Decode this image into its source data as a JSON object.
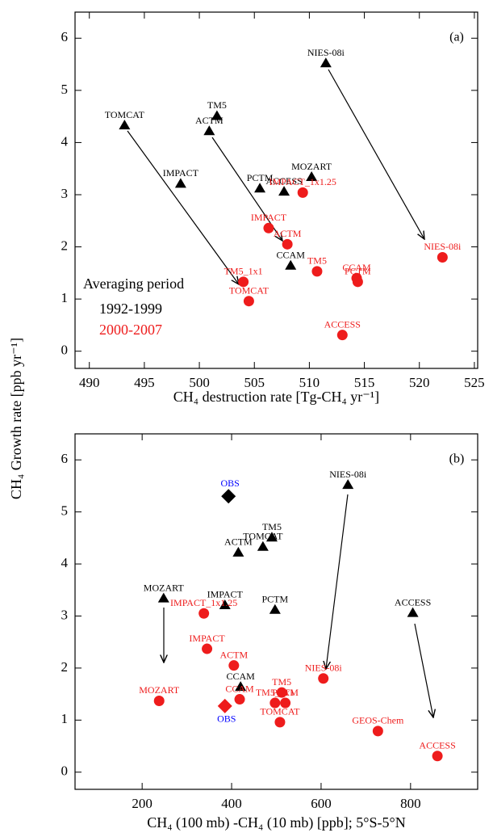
{
  "chart_data": [
    {
      "type": "scatter",
      "panel_label": "(a)",
      "y_label": "CH₄ Growth rate [ppb yr⁻¹]",
      "x_label": "CH₄ destruction rate [Tg-CH₄ yr⁻¹]",
      "legend": true,
      "legend_title": "Averaging period",
      "xlim": [
        488.7,
        525.3
      ],
      "xticks": [
        490,
        495,
        500,
        505,
        510,
        515,
        520,
        525
      ],
      "ylim": [
        -0.33,
        6.5
      ],
      "yticks": [
        0,
        1,
        2,
        3,
        4,
        5,
        6
      ],
      "series": [
        {
          "name": "1992-1999",
          "color": "#000000",
          "marker": "triangle",
          "labels": [
            "NIES-08i",
            "TM5",
            "ACTM",
            "TOMCAT",
            "IMPACT",
            "PCTM",
            "ACCESS",
            "MOZART",
            "CCAM"
          ],
          "x": [
            511.5,
            501.6,
            500.9,
            493.2,
            498.3,
            505.5,
            507.7,
            510.2,
            508.3
          ],
          "y": [
            5.52,
            4.51,
            4.22,
            4.33,
            3.21,
            3.12,
            3.06,
            3.34,
            1.64
          ]
        },
        {
          "name": "2000-2007",
          "color": "#ee1c1c",
          "marker": "circle",
          "labels": [
            "IMPACT_1x1.25",
            "IMPACT",
            "ACTM",
            "NIES-08i",
            "TM5",
            "TM5_1x1",
            "TOMCAT",
            "CCAM",
            "PCTM",
            "ACCESS"
          ],
          "x": [
            509.4,
            506.3,
            508.0,
            522.1,
            510.7,
            504.0,
            504.5,
            514.3,
            514.4,
            513.0
          ],
          "y": [
            3.04,
            2.36,
            2.05,
            1.8,
            1.53,
            1.33,
            0.96,
            1.4,
            1.33,
            0.31
          ]
        }
      ]
    },
    {
      "type": "scatter",
      "panel_label": "(b)",
      "x_label": "CH₄ (100 mb) -CH₄ (10 mb) [ppb]; 5°S-5°N",
      "legend": false,
      "xlim": [
        50,
        950
      ],
      "xticks": [
        200,
        400,
        600,
        800
      ],
      "ylim": [
        -0.33,
        6.5
      ],
      "yticks": [
        0,
        1,
        2,
        3,
        4,
        5,
        6
      ],
      "series": [
        {
          "color": "#000000",
          "marker": "triangle",
          "labels": [
            "NIES-08i",
            "TM5",
            "TOMCAT",
            "ACTM",
            "MOZART",
            "IMPACT",
            "PCTM",
            "ACCESS",
            "CCAM"
          ],
          "x": [
            660,
            490,
            470,
            415,
            248,
            385,
            497,
            805,
            420
          ],
          "y": [
            5.52,
            4.51,
            4.33,
            4.22,
            3.34,
            3.21,
            3.12,
            3.06,
            1.64
          ],
          "obs": {
            "label": "OBS",
            "x": 393,
            "y": 5.3,
            "label_color": "#0000ff"
          }
        },
        {
          "color": "#ee1c1c",
          "marker": "circle",
          "labels": [
            "IMPACT_1x1.25",
            "IMPACT",
            "ACTM",
            "NIES-08i",
            "MOZART",
            "CCAM",
            "TM5",
            "TM5_1x1",
            "PCTM",
            "TOMCAT",
            "GEOS-Chem",
            "ACCESS"
          ],
          "x": [
            338,
            345,
            405,
            605,
            238,
            418,
            512,
            497,
            520,
            508,
            727,
            860
          ],
          "y": [
            3.05,
            2.37,
            2.05,
            1.8,
            1.37,
            1.4,
            1.53,
            1.33,
            1.33,
            0.96,
            0.79,
            0.31
          ],
          "obs": {
            "label": "OBS",
            "x": 385,
            "y": 1.27,
            "label_color": "#0000ff"
          }
        }
      ]
    }
  ]
}
